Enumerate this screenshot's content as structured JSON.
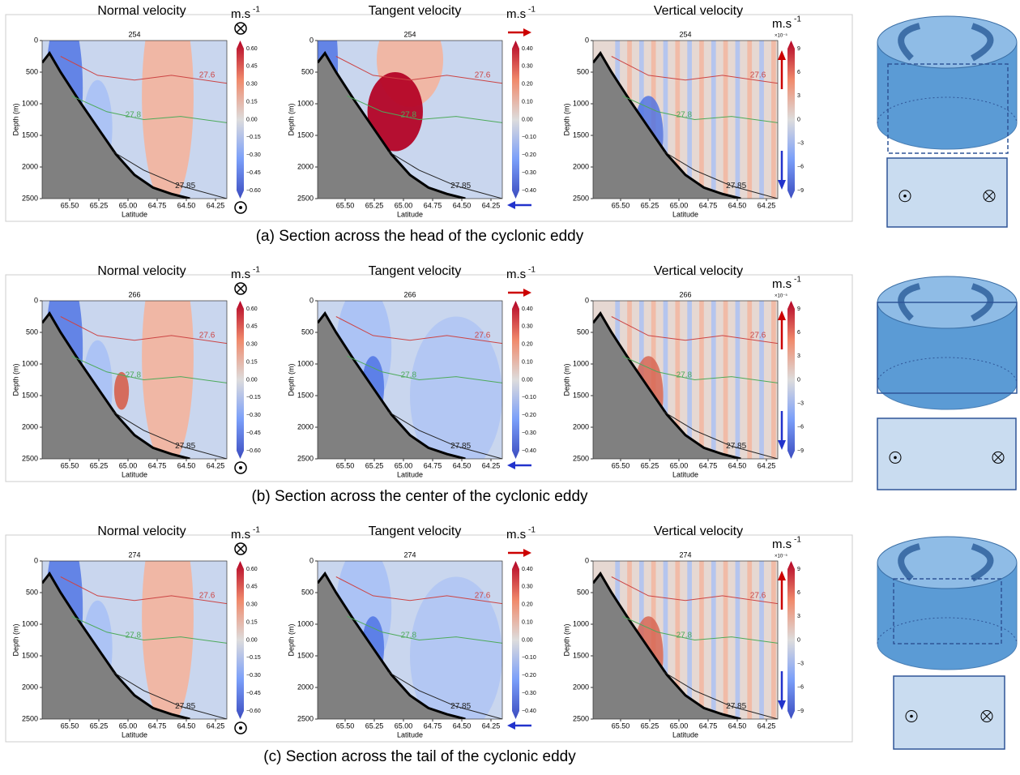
{
  "axes": {
    "y_label": "Depth (m)",
    "x_label": "Latitude",
    "y_ticks": [
      "0",
      "500",
      "1000",
      "1500",
      "2000",
      "2500"
    ],
    "x_ticks": [
      "65.50",
      "65.25",
      "65.00",
      "64.75",
      "64.50",
      "64.25"
    ]
  },
  "unit": {
    "base": "m.s",
    "exponent": "-1"
  },
  "variables": [
    {
      "title": "Normal velocity",
      "colorbar_ticks": [
        "0.60",
        "0.45",
        "0.30",
        "0.15",
        "0.00",
        "−0.15",
        "−0.30",
        "−0.45",
        "−0.60"
      ]
    },
    {
      "title": "Tangent velocity",
      "colorbar_ticks": [
        "0.40",
        "0.30",
        "0.20",
        "0.10",
        "0.00",
        "−0.10",
        "−0.20",
        "−0.30",
        "−0.40"
      ]
    },
    {
      "title": "Vertical velocity",
      "colorbar_ticks": [
        "9",
        "6",
        "3",
        "0",
        "−3",
        "−6",
        "−9"
      ],
      "scale": "×10⁻⁵"
    }
  ],
  "isopycnals": [
    "27.6",
    "27.8",
    "27.85"
  ],
  "rows": [
    {
      "frame": "254",
      "caption": "(a) Section across the head of the cyclonic eddy"
    },
    {
      "frame": "266",
      "caption": "(b) Section across the center of the cyclonic eddy"
    },
    {
      "frame": "274",
      "caption": "(c) Section across the tail of the cyclonic eddy"
    }
  ]
}
